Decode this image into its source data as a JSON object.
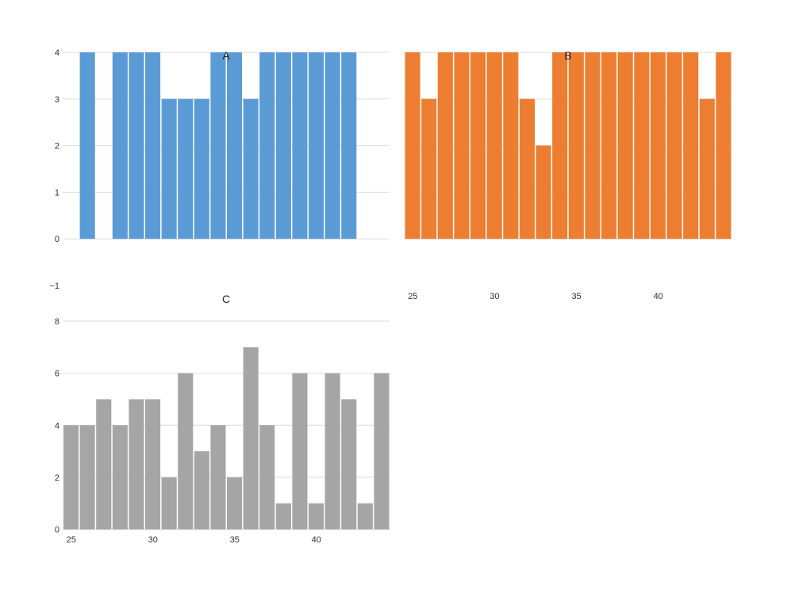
{
  "chart_data": [
    {
      "type": "bar",
      "title": "A",
      "x": [
        24,
        25,
        26,
        27,
        28,
        29,
        30,
        31,
        32,
        33,
        34,
        35,
        36,
        37,
        38,
        39,
        40,
        41,
        42,
        43,
        44
      ],
      "values": [
        0,
        4,
        0,
        4,
        4,
        4,
        3,
        3,
        3,
        4,
        4,
        3,
        4,
        4,
        4,
        4,
        4,
        4,
        0,
        0,
        0
      ],
      "color": "#5b9bd5",
      "ylim": [
        -1,
        4
      ],
      "yticks": [
        "−1",
        "0",
        "1",
        "2",
        "3",
        "4"
      ],
      "xticks": [],
      "grid": true
    },
    {
      "type": "bar",
      "title": "B",
      "x": [
        25,
        26,
        27,
        28,
        29,
        30,
        31,
        32,
        33,
        34,
        35,
        36,
        37,
        38,
        39,
        40,
        41,
        42,
        43,
        44
      ],
      "values": [
        4,
        3,
        4,
        4,
        4,
        4,
        4,
        3,
        2,
        4,
        4,
        4,
        4,
        4,
        4,
        4,
        4,
        4,
        3,
        4
      ],
      "color": "#ed7d31",
      "ylim": [
        -1,
        4
      ],
      "yticks": [],
      "xticks": [
        "25",
        "30",
        "35",
        "40"
      ],
      "grid": true
    },
    {
      "type": "bar",
      "title": "C",
      "x": [
        25,
        26,
        27,
        28,
        29,
        30,
        31,
        32,
        33,
        34,
        35,
        36,
        37,
        38,
        39,
        40,
        41,
        42,
        43,
        44
      ],
      "values": [
        4,
        4,
        5,
        4,
        5,
        5,
        2,
        6,
        3,
        4,
        2,
        7,
        4,
        1,
        6,
        1,
        6,
        5,
        1,
        6
      ],
      "color": "#a5a5a5",
      "ylim": [
        0,
        8
      ],
      "yticks": [
        "0",
        "2",
        "4",
        "6",
        "8"
      ],
      "xticks": [
        "25",
        "30",
        "35",
        "40"
      ],
      "grid": true
    }
  ]
}
